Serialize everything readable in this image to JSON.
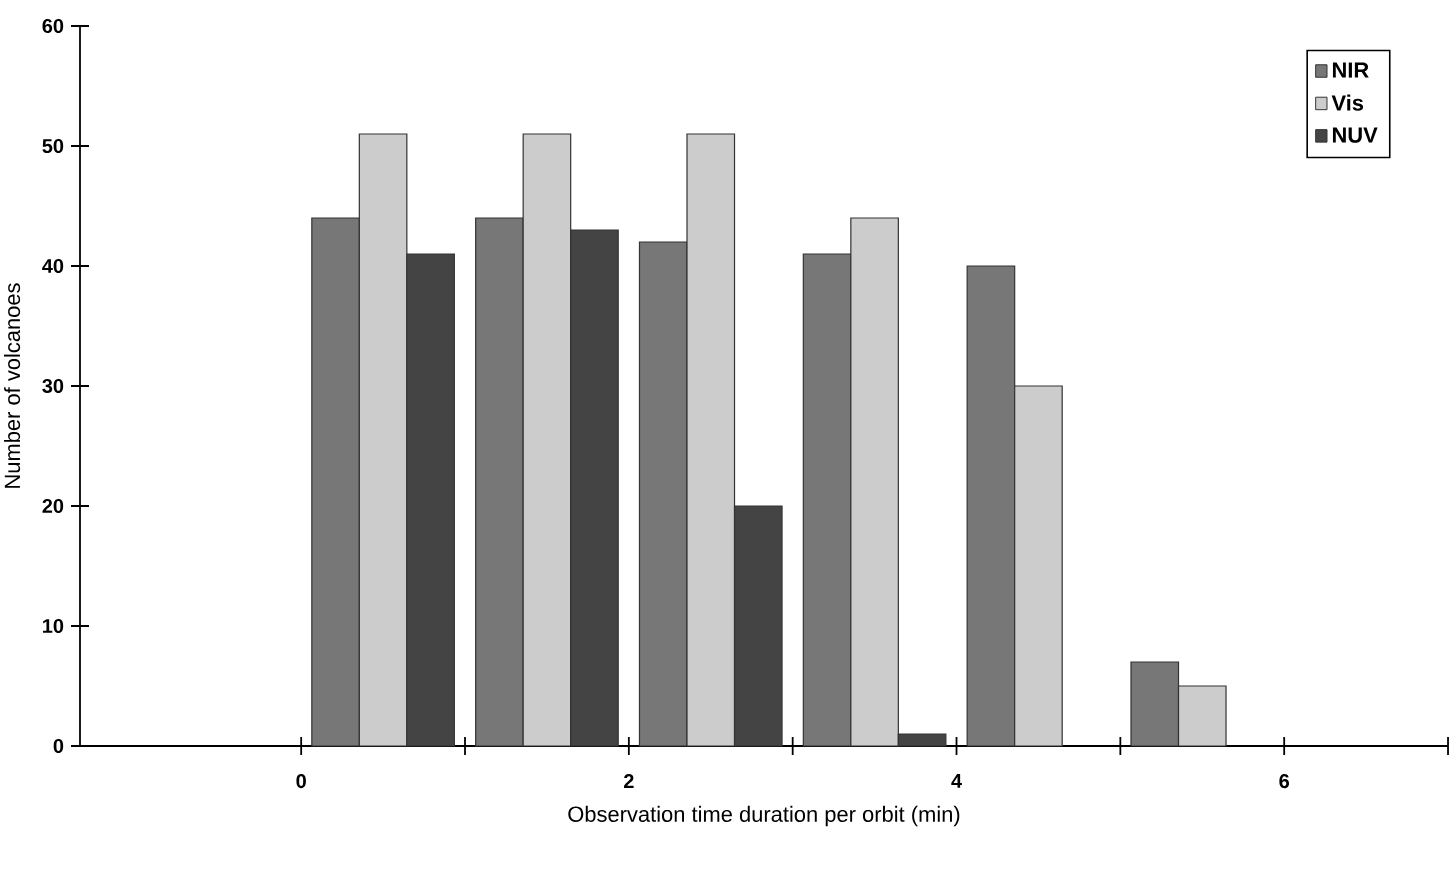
{
  "chart_data": {
    "type": "bar",
    "xlabel": "Observation time duration per orbit (min)",
    "ylabel": "Number of volcanoes",
    "series": [
      {
        "name": "NIR",
        "color": "#777777",
        "x": [
          0.5,
          1.5,
          2.5,
          3.5,
          4.5,
          5.5
        ],
        "values": [
          44,
          44,
          42,
          41,
          40,
          7
        ]
      },
      {
        "name": "Vis",
        "color": "#cccccc",
        "x": [
          0.5,
          1.5,
          2.5,
          3.5,
          4.5,
          5.5
        ],
        "values": [
          51,
          51,
          51,
          44,
          30,
          5
        ]
      },
      {
        "name": "NUV",
        "color": "#444444",
        "x": [
          0.5,
          1.5,
          2.5,
          3.5
        ],
        "values": [
          41,
          43,
          20,
          1
        ]
      }
    ],
    "xlim": [
      -1.35,
      7
    ],
    "ylim": [
      0,
      60
    ],
    "xticks": [
      0,
      {
        "value": 1,
        "label": null
      },
      2,
      {
        "value": 3,
        "label": null
      },
      4,
      {
        "value": 5,
        "label": null
      },
      6,
      {
        "value": 7,
        "label": null
      }
    ],
    "yticks": [
      0,
      10,
      20,
      30,
      40,
      50,
      60
    ],
    "grid": false,
    "legend": "top right"
  }
}
